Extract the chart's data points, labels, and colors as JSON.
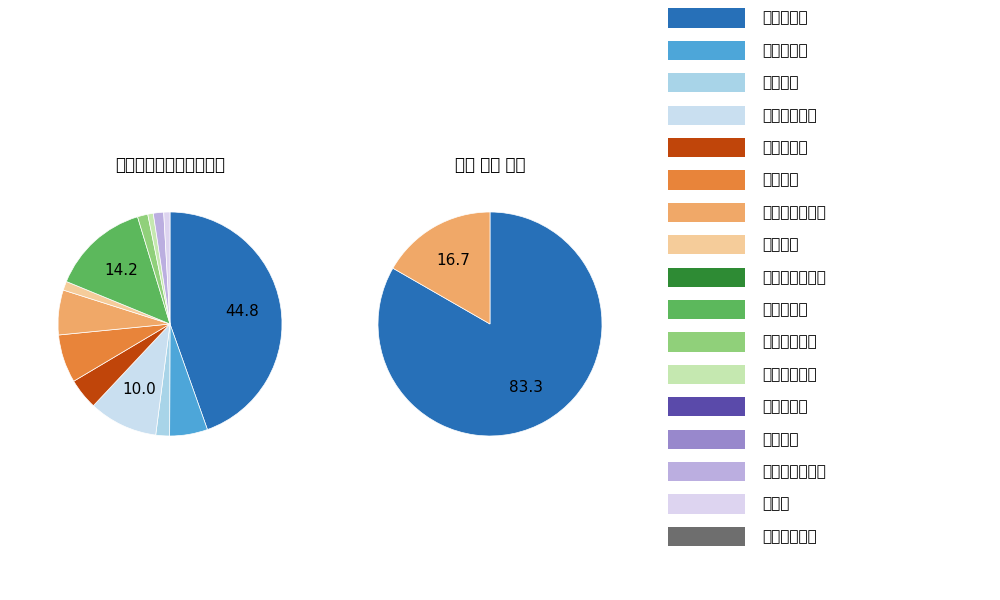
{
  "legend_items": [
    {
      "label": "ストレート",
      "color": "#2770b8"
    },
    {
      "label": "ツーシーム",
      "color": "#4da6d9"
    },
    {
      "label": "シュート",
      "color": "#a8d4e8"
    },
    {
      "label": "カットボール",
      "color": "#c9dff0"
    },
    {
      "label": "スプリット",
      "color": "#c0450a"
    },
    {
      "label": "フォーク",
      "color": "#e8843a"
    },
    {
      "label": "チェンジアップ",
      "color": "#f0a868"
    },
    {
      "label": "シンカー",
      "color": "#f5cc9a"
    },
    {
      "label": "高速スライダー",
      "color": "#2e8b34"
    },
    {
      "label": "スライダー",
      "color": "#5cb85c"
    },
    {
      "label": "縦スライダー",
      "color": "#90d07a"
    },
    {
      "label": "パワーカーブ",
      "color": "#c5e8b0"
    },
    {
      "label": "スクリュー",
      "color": "#5a4aaa"
    },
    {
      "label": "ナックル",
      "color": "#9888cc"
    },
    {
      "label": "ナックルカーブ",
      "color": "#bbaee0"
    },
    {
      "label": "カーブ",
      "color": "#ddd4f0"
    },
    {
      "label": "スローカーブ",
      "color": "#6e6e6e"
    }
  ],
  "pie1_title": "セ・リーグ全プレイヤー",
  "pie1_data": [
    {
      "label": "ストレート",
      "value": 44.8,
      "color": "#2770b8"
    },
    {
      "label": "ツーシーム",
      "value": 5.5,
      "color": "#4da6d9"
    },
    {
      "label": "シュート",
      "value": 2.0,
      "color": "#a8d4e8"
    },
    {
      "label": "カットボール",
      "value": 10.0,
      "color": "#c9dff0"
    },
    {
      "label": "スプリット",
      "value": 4.5,
      "color": "#c0450a"
    },
    {
      "label": "フォーク",
      "value": 7.0,
      "color": "#e8843a"
    },
    {
      "label": "チェンジアップ",
      "value": 6.5,
      "color": "#f0a868"
    },
    {
      "label": "シンカー",
      "value": 1.3,
      "color": "#f5cc9a"
    },
    {
      "label": "スライダー",
      "value": 14.2,
      "color": "#5cb85c"
    },
    {
      "label": "縦スライダー",
      "value": 1.5,
      "color": "#90d07a"
    },
    {
      "label": "パワーカーブ",
      "value": 0.8,
      "color": "#c5e8b0"
    },
    {
      "label": "ナックルカーブ",
      "value": 1.5,
      "color": "#bbaee0"
    },
    {
      "label": "カーブ",
      "value": 0.9,
      "color": "#ddd4f0"
    }
  ],
  "pie1_labels_show": [
    44.8,
    10.0,
    14.2
  ],
  "pie2_title": "石川 雅規 選手",
  "pie2_data": [
    {
      "label": "ストレート",
      "value": 83.3,
      "color": "#2770b8"
    },
    {
      "label": "チェンジアップ",
      "value": 16.7,
      "color": "#f0a868"
    }
  ],
  "pie2_labels_show": [
    83.3,
    16.7
  ],
  "bg_color": "#ffffff",
  "title_fontsize": 12,
  "label_fontsize": 11,
  "legend_fontsize": 11
}
